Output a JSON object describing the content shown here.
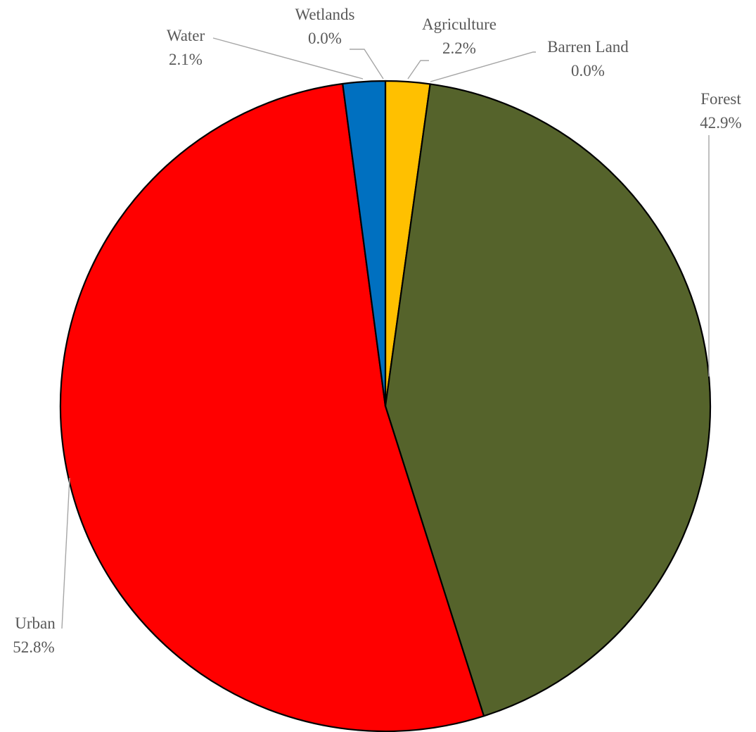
{
  "chart_data": {
    "type": "pie",
    "start_angle_deg": 0,
    "direction": "clockwise",
    "slices": [
      {
        "name": "Agriculture",
        "value": 2.2,
        "label": "2.2%",
        "color": "#FFC000"
      },
      {
        "name": "Barren Land",
        "value": 0.0,
        "label": "0.0%",
        "color": "#A5A5A5"
      },
      {
        "name": "Forest",
        "value": 42.9,
        "label": "42.9%",
        "color": "#55632B"
      },
      {
        "name": "Urban",
        "value": 52.8,
        "label": "52.8%",
        "color": "#FF0000"
      },
      {
        "name": "Water",
        "value": 2.1,
        "label": "2.1%",
        "color": "#0070C0"
      },
      {
        "name": "Wetlands",
        "value": 0.0,
        "label": "0.0%",
        "color": "#70AD47"
      }
    ],
    "title": "",
    "legend": "none",
    "data_labels": "outside with leader lines"
  }
}
